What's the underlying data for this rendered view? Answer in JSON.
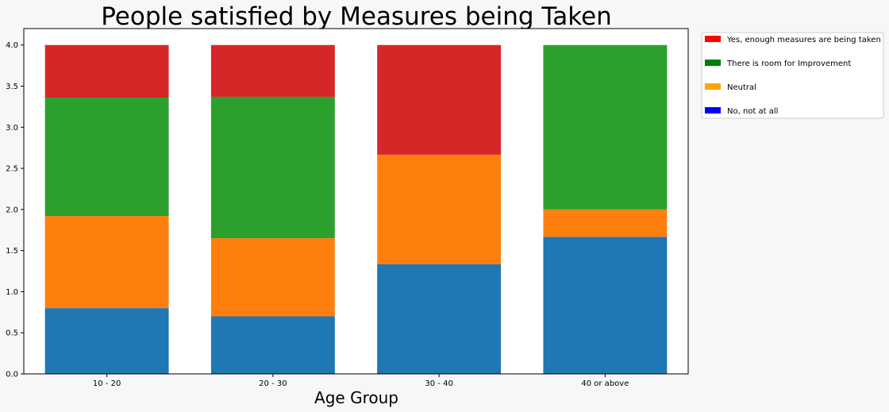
{
  "chart_data": {
    "type": "bar",
    "stacked": true,
    "title": "People satisfied by Measures being Taken",
    "xlabel": "Age Group",
    "ylabel": "",
    "categories": [
      "10 - 20",
      "20 - 30",
      "30 - 40",
      "40 or above"
    ],
    "ylim": [
      0,
      4.2
    ],
    "yticks": [
      "0.0",
      "0.5",
      "1.0",
      "1.5",
      "2.0",
      "2.5",
      "3.0",
      "3.5",
      "4.0"
    ],
    "grid": false,
    "legend_placement": "outside-top-right",
    "series": [
      {
        "values": [
          0.8,
          0.7,
          1.333,
          1.667
        ],
        "color": "#1f77b4"
      },
      {
        "values": [
          1.12,
          0.95,
          1.333,
          0.333
        ],
        "color": "#ff7f0e"
      },
      {
        "values": [
          1.44,
          1.72,
          0.0,
          2.0
        ],
        "color": "#2ca02c"
      },
      {
        "values": [
          0.64,
          0.63,
          1.334,
          0.0
        ],
        "color": "#d62728"
      }
    ],
    "legend": [
      {
        "label": "Yes, enough measures are being taken",
        "color": "#ff0000"
      },
      {
        "label": "There is room for Improvement",
        "color": "#008000"
      },
      {
        "label": "Neutral",
        "color": "#ffa500"
      },
      {
        "label": "No, not at all",
        "color": "#0000ff"
      }
    ]
  }
}
